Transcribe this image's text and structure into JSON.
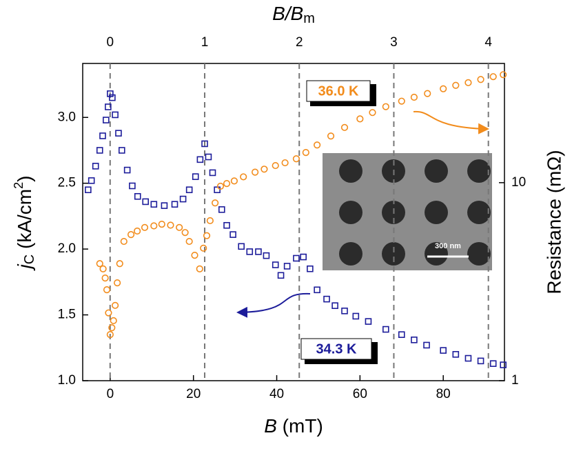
{
  "chart_data": {
    "type": "scatter",
    "x_label": {
      "main": "B",
      "rest": " (mT)"
    },
    "x2_label": {
      "main": "B/B",
      "sub": "m"
    },
    "y_label": {
      "main": "j",
      "sub": "C",
      "rest": " (kA/cm",
      "sup": "2",
      "end": ")"
    },
    "y2_label": "Resistance (mΩ)",
    "xlim": [
      -6.6,
      94.7
    ],
    "xticks": [
      0,
      20,
      40,
      60,
      80
    ],
    "x2lim": [
      -0.29,
      4.17
    ],
    "x2ticks": [
      0,
      1,
      2,
      3,
      4
    ],
    "ylim": [
      1.0,
      3.41
    ],
    "yticks": [
      {
        "value": 1,
        "label": "1.0"
      },
      1.5,
      {
        "value": 2,
        "label": "2.0"
      },
      2.5,
      {
        "value": 3,
        "label": "3.0"
      }
    ],
    "y2lim": [
      1,
      40
    ],
    "y2ticks": [
      1,
      10
    ],
    "y2_log": true,
    "annotations": [
      "36.0 K",
      "34.3 K"
    ],
    "inset_scale_bar": "300 nm",
    "series": [
      {
        "name": "34.3 K",
        "color": "#1c1c9a",
        "marker": "square",
        "x": [
          -5.3,
          -4.5,
          -3.5,
          -2.5,
          -1.8,
          -1.0,
          -0.5,
          0,
          0.5,
          1.2,
          2.0,
          2.8,
          4.1,
          5.3,
          6.6,
          8.5,
          10.5,
          13,
          15.5,
          17.5,
          19,
          20.5,
          21.6,
          22.7,
          23.6,
          24.6,
          25.7,
          26.8,
          28,
          29.5,
          31.5,
          33.5,
          35.6,
          37.5,
          39.7,
          41,
          42.5,
          44.7,
          46.4,
          48,
          49.7,
          52,
          54,
          56.3,
          59,
          62,
          66.2,
          70,
          73,
          76,
          80,
          83,
          86,
          89,
          92,
          94.4
        ],
        "values": [
          2.45,
          2.52,
          2.63,
          2.75,
          2.86,
          2.98,
          3.08,
          3.18,
          3.15,
          3.02,
          2.88,
          2.75,
          2.6,
          2.48,
          2.4,
          2.36,
          2.34,
          2.33,
          2.34,
          2.38,
          2.45,
          2.55,
          2.68,
          2.8,
          2.7,
          2.58,
          2.45,
          2.3,
          2.18,
          2.11,
          2.02,
          1.98,
          1.98,
          1.95,
          1.88,
          1.8,
          1.87,
          1.93,
          1.94,
          1.85,
          1.69,
          1.62,
          1.57,
          1.53,
          1.49,
          1.45,
          1.39,
          1.35,
          1.31,
          1.27,
          1.23,
          1.2,
          1.17,
          1.15,
          1.13,
          1.12
        ]
      },
      {
        "name": "36.0 K",
        "color": "#f28c1c",
        "marker": "circle",
        "axis": "y2",
        "x": [
          -2.5,
          -1.7,
          -1.2,
          -0.8,
          -0.4,
          0,
          0.4,
          0.8,
          1.2,
          1.7,
          2.3,
          3.3,
          5,
          6.5,
          8.3,
          10.5,
          12.4,
          14.5,
          16.6,
          18,
          19,
          20.3,
          21.5,
          22.4,
          23.2,
          24,
          25.2,
          26.5,
          28,
          29.8,
          32,
          34.8,
          37,
          39.7,
          42,
          44.7,
          47,
          49.7,
          53,
          56.3,
          60,
          63,
          66.2,
          70,
          73,
          76.2,
          80,
          83,
          86,
          89,
          92,
          94.4
        ],
        "values": [
          3.9,
          3.67,
          3.3,
          2.88,
          2.2,
          1.71,
          1.85,
          2.01,
          2.4,
          3.12,
          3.9,
          5.05,
          5.47,
          5.7,
          5.94,
          6.05,
          6.17,
          6.1,
          5.94,
          5.6,
          5.05,
          4.3,
          3.67,
          4.67,
          5.4,
          6.43,
          7.9,
          9.6,
          9.9,
          10.2,
          10.7,
          11.3,
          11.7,
          12.2,
          12.6,
          13.2,
          14.2,
          15.5,
          17.2,
          19.0,
          21.0,
          22.6,
          24.2,
          25.8,
          27.0,
          28.2,
          29.8,
          31.0,
          32.0,
          33.2,
          34.3,
          35.1
        ]
      }
    ]
  }
}
